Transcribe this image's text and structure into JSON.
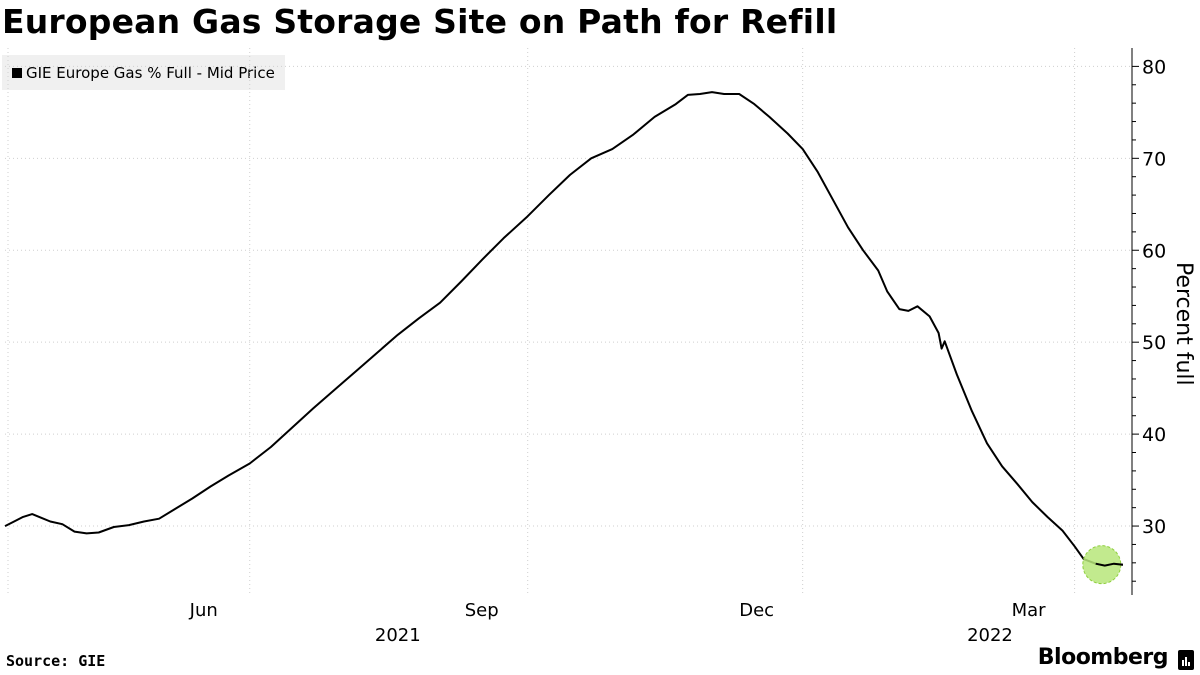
{
  "title": "European Gas Storage Site on Path for Refill",
  "legend": {
    "label": "GIE Europe Gas % Full - Mid Price"
  },
  "source": "Source: GIE",
  "brand": "Bloomberg",
  "chart_data": {
    "type": "line",
    "title": "European Gas Storage Site on Path for Refill",
    "ylabel": "Percent full",
    "xlabel": "",
    "ylim": [
      22.5,
      82
    ],
    "xlim": [
      "2021-03-12",
      "2022-03-20"
    ],
    "y_ticks": [
      30,
      40,
      50,
      60,
      70,
      80
    ],
    "x_ticks": [
      {
        "date": "2021-06-01",
        "label": "Jun"
      },
      {
        "date": "2021-09-01",
        "label": "Sep"
      },
      {
        "date": "2021-12-01",
        "label": "Dec"
      },
      {
        "date": "2022-03-01",
        "label": "Mar"
      }
    ],
    "year_labels": [
      {
        "date": "2021-07-20",
        "label": "2021"
      },
      {
        "date": "2022-02-01",
        "label": "2022"
      }
    ],
    "grid": true,
    "legend_position": "top-left",
    "highlight": {
      "date": "2022-03-10",
      "value": 25.8,
      "color": "#b7e67a"
    },
    "series": [
      {
        "name": "GIE Europe Gas % Full - Mid Price",
        "color": "#000000",
        "points": [
          [
            "2021-03-12",
            30.0
          ],
          [
            "2021-03-15",
            30.5
          ],
          [
            "2021-03-18",
            31.0
          ],
          [
            "2021-03-21",
            31.3
          ],
          [
            "2021-03-24",
            30.9
          ],
          [
            "2021-03-27",
            30.5
          ],
          [
            "2021-03-31",
            30.2
          ],
          [
            "2021-04-04",
            29.4
          ],
          [
            "2021-04-08",
            29.2
          ],
          [
            "2021-04-12",
            29.3
          ],
          [
            "2021-04-17",
            29.9
          ],
          [
            "2021-04-22",
            30.1
          ],
          [
            "2021-04-27",
            30.5
          ],
          [
            "2021-05-02",
            30.8
          ],
          [
            "2021-05-07",
            31.8
          ],
          [
            "2021-05-13",
            33.0
          ],
          [
            "2021-05-19",
            34.3
          ],
          [
            "2021-05-25",
            35.5
          ],
          [
            "2021-06-01",
            36.8
          ],
          [
            "2021-06-08",
            38.6
          ],
          [
            "2021-06-15",
            40.7
          ],
          [
            "2021-06-22",
            42.8
          ],
          [
            "2021-06-29",
            44.8
          ],
          [
            "2021-07-06",
            46.8
          ],
          [
            "2021-07-13",
            48.8
          ],
          [
            "2021-07-20",
            50.8
          ],
          [
            "2021-07-27",
            52.6
          ],
          [
            "2021-08-03",
            54.3
          ],
          [
            "2021-08-10",
            56.6
          ],
          [
            "2021-08-17",
            59.0
          ],
          [
            "2021-08-24",
            61.3
          ],
          [
            "2021-09-01",
            63.7
          ],
          [
            "2021-09-08",
            66.0
          ],
          [
            "2021-09-15",
            68.2
          ],
          [
            "2021-09-22",
            70.0
          ],
          [
            "2021-09-29",
            71.0
          ],
          [
            "2021-10-06",
            72.6
          ],
          [
            "2021-10-13",
            74.5
          ],
          [
            "2021-10-20",
            75.9
          ],
          [
            "2021-10-24",
            76.9
          ],
          [
            "2021-10-28",
            77.0
          ],
          [
            "2021-11-01",
            77.2
          ],
          [
            "2021-11-05",
            77.0
          ],
          [
            "2021-11-10",
            77.0
          ],
          [
            "2021-11-15",
            75.9
          ],
          [
            "2021-11-20",
            74.5
          ],
          [
            "2021-11-26",
            72.7
          ],
          [
            "2021-12-01",
            71.0
          ],
          [
            "2021-12-06",
            68.5
          ],
          [
            "2021-12-11",
            65.5
          ],
          [
            "2021-12-16",
            62.5
          ],
          [
            "2021-12-21",
            60.0
          ],
          [
            "2021-12-26",
            57.8
          ],
          [
            "2021-12-29",
            55.5
          ],
          [
            "2022-01-02",
            53.6
          ],
          [
            "2022-01-05",
            53.4
          ],
          [
            "2022-01-08",
            53.9
          ],
          [
            "2022-01-12",
            52.8
          ],
          [
            "2022-01-15",
            51.0
          ],
          [
            "2022-01-16",
            49.3
          ],
          [
            "2022-01-17",
            50.1
          ],
          [
            "2022-01-21",
            46.5
          ],
          [
            "2022-01-26",
            42.5
          ],
          [
            "2022-01-31",
            39.0
          ],
          [
            "2022-02-05",
            36.5
          ],
          [
            "2022-02-10",
            34.6
          ],
          [
            "2022-02-15",
            32.6
          ],
          [
            "2022-02-20",
            31.0
          ],
          [
            "2022-02-25",
            29.5
          ],
          [
            "2022-03-01",
            27.8
          ],
          [
            "2022-03-04",
            26.4
          ],
          [
            "2022-03-08",
            25.9
          ],
          [
            "2022-03-11",
            25.7
          ],
          [
            "2022-03-14",
            25.9
          ],
          [
            "2022-03-17",
            25.8
          ]
        ]
      }
    ]
  }
}
